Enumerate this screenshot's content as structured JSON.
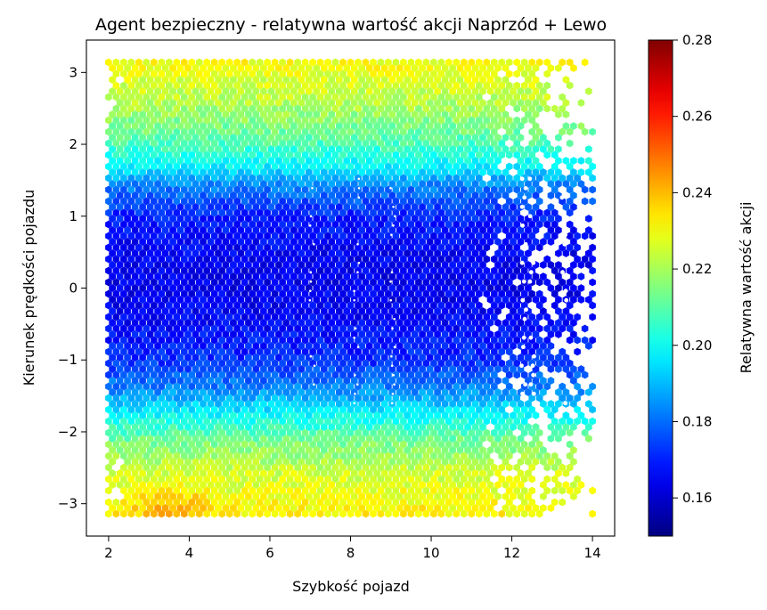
{
  "chart_data": {
    "type": "heatmap",
    "subtype": "hexbin",
    "title": "Agent bezpieczny - relatywna wartość akcji Naprzód + Lewo",
    "xlabel": "Szybkość pojazd",
    "ylabel": "Kierunek prędkości pojazdu",
    "xlim": [
      1.45,
      14.55
    ],
    "ylim": [
      -3.45,
      3.45
    ],
    "x_ticks": [
      2,
      4,
      6,
      8,
      10,
      12,
      14
    ],
    "y_ticks": [
      -3,
      -2,
      -1,
      0,
      1,
      2,
      3
    ],
    "x_range_data": [
      2.0,
      14.0
    ],
    "y_range_data": [
      -3.14,
      3.14
    ],
    "colorbar": {
      "label": "Relatywna wartość akcji",
      "colormap": "jet",
      "vmin": 0.15,
      "vmax": 0.28,
      "ticks": [
        0.16,
        0.18,
        0.2,
        0.22,
        0.24,
        0.26,
        0.28
      ]
    },
    "value_profile_by_heading": [
      {
        "y": -3.1,
        "value": 0.232
      },
      {
        "y": -2.6,
        "value": 0.226
      },
      {
        "y": -2.1,
        "value": 0.213
      },
      {
        "y": -1.7,
        "value": 0.196
      },
      {
        "y": -1.4,
        "value": 0.183
      },
      {
        "y": -1.0,
        "value": 0.172
      },
      {
        "y": -0.5,
        "value": 0.166
      },
      {
        "y": 0.0,
        "value": 0.164
      },
      {
        "y": 0.5,
        "value": 0.165
      },
      {
        "y": 1.0,
        "value": 0.17
      },
      {
        "y": 1.4,
        "value": 0.182
      },
      {
        "y": 1.7,
        "value": 0.198
      },
      {
        "y": 2.1,
        "value": 0.211
      },
      {
        "y": 2.6,
        "value": 0.222
      },
      {
        "y": 3.1,
        "value": 0.23
      }
    ],
    "hot_spot": {
      "x": 3.6,
      "y": -3.05,
      "value": 0.243
    },
    "grid": false,
    "legend": "colorbar-right"
  },
  "colors": {
    "background": "#ffffff",
    "axis": "#000000",
    "gap": "#ffffff"
  }
}
